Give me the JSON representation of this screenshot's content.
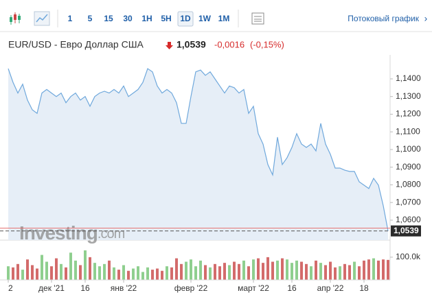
{
  "toolbar": {
    "intervals": [
      "1",
      "5",
      "15",
      "30",
      "1H",
      "5H",
      "1D",
      "1W",
      "1M"
    ],
    "active": "1D",
    "streaming_link": "Потоковый график"
  },
  "header": {
    "instrument": "EUR/USD - Евро Доллар США",
    "price": "1,0539",
    "change": "-0,0016",
    "change_percent": "(-0,15%)"
  },
  "watermark": {
    "brand": "Investing",
    "suffix": ".com"
  },
  "chart_data": {
    "type": "line",
    "color": "#6fa8dc",
    "fill": "#e6eef7",
    "xlim": [
      0,
      79
    ],
    "xticks": [
      {
        "value": 0,
        "label": "2"
      },
      {
        "value": 9,
        "label": "дек '21"
      },
      {
        "value": 16,
        "label": "16"
      },
      {
        "value": 24,
        "label": "янв '22"
      },
      {
        "value": 38,
        "label": "февр '22"
      },
      {
        "value": 51,
        "label": "март '22"
      },
      {
        "value": 59,
        "label": "16"
      },
      {
        "value": 67,
        "label": "апр '22"
      },
      {
        "value": 74,
        "label": "18"
      }
    ],
    "ylim": [
      1.0487,
      1.1497
    ],
    "yticks": [
      {
        "value": 1.14,
        "label": "1,1400"
      },
      {
        "value": 1.13,
        "label": "1,1300"
      },
      {
        "value": 1.12,
        "label": "1,1200"
      },
      {
        "value": 1.11,
        "label": "1,1100"
      },
      {
        "value": 1.1,
        "label": "1,1000"
      },
      {
        "value": 1.09,
        "label": "1,0900"
      },
      {
        "value": 1.08,
        "label": "1,0800"
      },
      {
        "value": 1.07,
        "label": "1,0700"
      },
      {
        "value": 1.06,
        "label": "1,0600"
      }
    ],
    "last_price": {
      "value": 1.0539,
      "label": "1,0539"
    },
    "reference_line": 1.0555,
    "values": [
      1.1458,
      1.138,
      1.132,
      1.137,
      1.128,
      1.1225,
      1.1205,
      1.132,
      1.134,
      1.132,
      1.13,
      1.132,
      1.1265,
      1.13,
      1.132,
      1.128,
      1.13,
      1.1245,
      1.13,
      1.132,
      1.133,
      1.132,
      1.134,
      1.132,
      1.136,
      1.13,
      1.132,
      1.134,
      1.138,
      1.1458,
      1.144,
      1.136,
      1.132,
      1.134,
      1.132,
      1.1265,
      1.1148,
      1.1148,
      1.13,
      1.144,
      1.145,
      1.142,
      1.144,
      1.14,
      1.136,
      1.132,
      1.136,
      1.135,
      1.132,
      1.134,
      1.1205,
      1.1245,
      1.109,
      1.1031,
      1.0915,
      1.0856,
      1.107,
      1.0915,
      1.0954,
      1.1012,
      1.109,
      1.1031,
      1.1012,
      1.1031,
      1.0992,
      1.1148,
      1.1031,
      1.0973,
      1.0895,
      1.0895,
      1.0883,
      1.0876,
      1.0876,
      1.0817,
      1.0798,
      1.0779,
      1.0837,
      1.0798,
      1.0682,
      1.0539
    ],
    "volume": {
      "up_color": "#8fcf8f",
      "down_color": "#d36b6b",
      "ylim": [
        0,
        160000
      ],
      "yticks": [
        {
          "value": 100000,
          "label": "100.0k"
        }
      ],
      "values": [
        60000,
        55000,
        70000,
        45000,
        90000,
        65000,
        50000,
        110000,
        80000,
        60000,
        95000,
        70000,
        55000,
        120000,
        85000,
        65000,
        130000,
        100000,
        75000,
        60000,
        70000,
        85000,
        55000,
        45000,
        65000,
        40000,
        50000,
        60000,
        35000,
        55000,
        45000,
        50000,
        40000,
        60000,
        55000,
        95000,
        70000,
        80000,
        90000,
        60000,
        85000,
        65000,
        55000,
        70000,
        60000,
        75000,
        65000,
        80000,
        70000,
        85000,
        60000,
        90000,
        95000,
        75000,
        100000,
        80000,
        85000,
        95000,
        90000,
        75000,
        85000,
        80000,
        70000,
        60000,
        85000,
        75000,
        65000,
        80000,
        55000,
        60000,
        70000,
        65000,
        80000,
        60000,
        85000,
        90000,
        95000,
        85000,
        90000,
        88000
      ]
    }
  }
}
